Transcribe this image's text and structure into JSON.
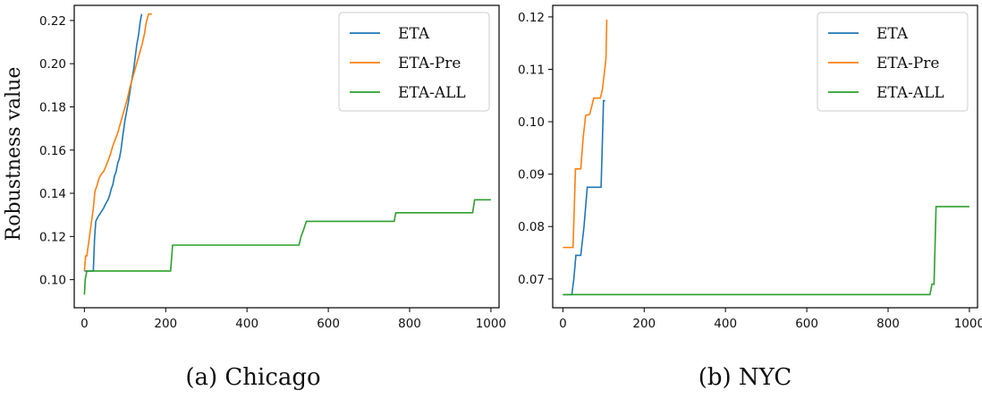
{
  "chart_data": [
    {
      "type": "line",
      "caption": "(a) Chicago",
      "ylabel": "Robustness value",
      "xlim": [
        -25,
        1020
      ],
      "ylim": [
        0.087,
        0.227
      ],
      "xticks": [
        0,
        200,
        400,
        600,
        800,
        1000
      ],
      "yticks": [
        0.1,
        0.12,
        0.14,
        0.16,
        0.18,
        0.2,
        0.22
      ],
      "ytick_decimals": 2,
      "grid": false,
      "legend_position": "top-right",
      "series": [
        {
          "name": "ETA",
          "color": "#1f77b4",
          "x": [
            0,
            5,
            22,
            25,
            28,
            33,
            40,
            47,
            52,
            58,
            62,
            66,
            70,
            74,
            78,
            82,
            86,
            90,
            94,
            97,
            100,
            104,
            108,
            112,
            117,
            121,
            125,
            129,
            133,
            137,
            141
          ],
          "y": [
            0.104,
            0.104,
            0.104,
            0.119,
            0.127,
            0.129,
            0.131,
            0.133,
            0.135,
            0.137,
            0.139,
            0.142,
            0.144,
            0.148,
            0.15,
            0.154,
            0.156,
            0.16,
            0.166,
            0.17,
            0.174,
            0.178,
            0.182,
            0.187,
            0.193,
            0.197,
            0.203,
            0.209,
            0.213,
            0.219,
            0.223
          ]
        },
        {
          "name": "ETA-Pre",
          "color": "#ff7f0e",
          "x": [
            0,
            3,
            6,
            22,
            26,
            30,
            36,
            42,
            47,
            52,
            58,
            64,
            70,
            76,
            82,
            88,
            94,
            100,
            106,
            112,
            118,
            124,
            130,
            136,
            142,
            148,
            152,
            158,
            166
          ],
          "y": [
            0.104,
            0.111,
            0.111,
            0.133,
            0.141,
            0.143,
            0.147,
            0.149,
            0.15,
            0.152,
            0.155,
            0.158,
            0.162,
            0.165,
            0.168,
            0.172,
            0.176,
            0.18,
            0.184,
            0.189,
            0.193,
            0.197,
            0.201,
            0.205,
            0.209,
            0.214,
            0.219,
            0.223,
            0.223
          ]
        },
        {
          "name": "ETA-ALL",
          "color": "#2ca02c",
          "x": [
            0,
            2,
            6,
            212,
            217,
            528,
            533,
            539,
            546,
            762,
            766,
            955,
            960,
            1000
          ],
          "y": [
            0.093,
            0.1,
            0.104,
            0.104,
            0.116,
            0.116,
            0.12,
            0.123,
            0.127,
            0.127,
            0.131,
            0.131,
            0.137,
            0.137
          ]
        }
      ]
    },
    {
      "type": "line",
      "caption": "(b) NYC",
      "ylabel": "",
      "xlim": [
        -25,
        1020
      ],
      "ylim": [
        0.0645,
        0.1222
      ],
      "xticks": [
        0,
        200,
        400,
        600,
        800,
        1000
      ],
      "yticks": [
        0.07,
        0.08,
        0.09,
        0.1,
        0.11,
        0.12
      ],
      "ytick_decimals": 2,
      "grid": false,
      "legend_position": "top-right",
      "series": [
        {
          "name": "ETA",
          "color": "#1f77b4",
          "x": [
            0,
            22,
            27,
            32,
            44,
            52,
            60,
            94,
            100,
            104
          ],
          "y": [
            0.067,
            0.067,
            0.07,
            0.0745,
            0.0745,
            0.08,
            0.0875,
            0.0875,
            0.104,
            0.104
          ]
        },
        {
          "name": "ETA-Pre",
          "color": "#ff7f0e",
          "x": [
            0,
            25,
            29,
            31,
            44,
            50,
            56,
            66,
            76,
            92,
            97,
            100,
            103,
            106,
            108
          ],
          "y": [
            0.076,
            0.076,
            0.086,
            0.091,
            0.091,
            0.097,
            0.1012,
            0.1014,
            0.1045,
            0.1045,
            0.106,
            0.108,
            0.11,
            0.112,
            0.1195
          ]
        },
        {
          "name": "ETA-ALL",
          "color": "#2ca02c",
          "x": [
            0,
            903,
            908,
            913,
            918,
            1000
          ],
          "y": [
            0.067,
            0.067,
            0.069,
            0.069,
            0.0838,
            0.0838
          ]
        }
      ]
    }
  ]
}
